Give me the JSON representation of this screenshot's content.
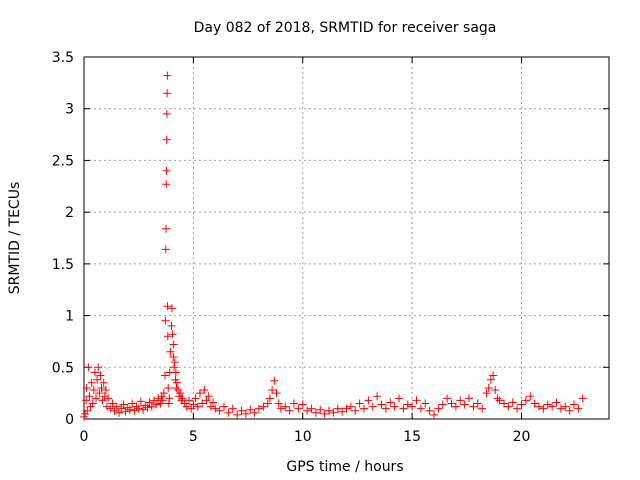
{
  "chart_data": {
    "type": "scatter",
    "title": "Day 082 of 2018, SRMTID for receiver saga",
    "xlabel": "GPS time / hours",
    "ylabel": "SRMTID / TECUs",
    "xlim": [
      0,
      24
    ],
    "ylim": [
      0,
      3.5
    ],
    "xticks": [
      0,
      5,
      10,
      15,
      20
    ],
    "xtick_labels": [
      "0",
      "5",
      "10",
      "15",
      "20"
    ],
    "yticks": [
      0,
      0.5,
      1,
      1.5,
      2,
      2.5,
      3,
      3.5
    ],
    "ytick_labels": [
      "0",
      "0.5",
      "1",
      "1.5",
      "2",
      "2.5",
      "3",
      "3.5"
    ],
    "grid": true,
    "marker": "+",
    "color": "#ff0000",
    "series": [
      {
        "name": "saga",
        "points": [
          [
            0.0,
            0.02
          ],
          [
            0.05,
            0.05
          ],
          [
            0.1,
            0.18
          ],
          [
            0.12,
            0.3
          ],
          [
            0.15,
            0.08
          ],
          [
            0.2,
            0.5
          ],
          [
            0.25,
            0.22
          ],
          [
            0.3,
            0.12
          ],
          [
            0.35,
            0.35
          ],
          [
            0.4,
            0.15
          ],
          [
            0.45,
            0.28
          ],
          [
            0.5,
            0.45
          ],
          [
            0.55,
            0.2
          ],
          [
            0.6,
            0.38
          ],
          [
            0.65,
            0.5
          ],
          [
            0.7,
            0.25
          ],
          [
            0.75,
            0.42
          ],
          [
            0.8,
            0.3
          ],
          [
            0.85,
            0.18
          ],
          [
            0.9,
            0.35
          ],
          [
            0.95,
            0.22
          ],
          [
            1.0,
            0.28
          ],
          [
            1.05,
            0.12
          ],
          [
            1.1,
            0.2
          ],
          [
            1.2,
            0.1
          ],
          [
            1.3,
            0.15
          ],
          [
            1.4,
            0.08
          ],
          [
            1.5,
            0.12
          ],
          [
            1.6,
            0.06
          ],
          [
            1.7,
            0.1
          ],
          [
            1.8,
            0.14
          ],
          [
            1.9,
            0.07
          ],
          [
            2.0,
            0.11
          ],
          [
            2.1,
            0.09
          ],
          [
            2.2,
            0.15
          ],
          [
            2.3,
            0.08
          ],
          [
            2.4,
            0.12
          ],
          [
            2.5,
            0.1
          ],
          [
            2.6,
            0.17
          ],
          [
            2.7,
            0.09
          ],
          [
            2.8,
            0.13
          ],
          [
            2.9,
            0.11
          ],
          [
            3.0,
            0.16
          ],
          [
            3.1,
            0.12
          ],
          [
            3.2,
            0.18
          ],
          [
            3.3,
            0.14
          ],
          [
            3.4,
            0.2
          ],
          [
            3.5,
            0.15
          ],
          [
            3.55,
            0.22
          ],
          [
            3.6,
            0.18
          ],
          [
            3.65,
            0.25
          ],
          [
            3.7,
            0.42
          ],
          [
            3.72,
            0.95
          ],
          [
            3.74,
            1.64
          ],
          [
            3.75,
            1.84
          ],
          [
            3.76,
            2.27
          ],
          [
            3.77,
            2.4
          ],
          [
            3.78,
            2.7
          ],
          [
            3.79,
            2.95
          ],
          [
            3.8,
            3.15
          ],
          [
            3.81,
            3.32
          ],
          [
            3.82,
            1.09
          ],
          [
            3.83,
            0.8
          ],
          [
            3.85,
            0.3
          ],
          [
            3.88,
            0.15
          ],
          [
            3.9,
            0.2
          ],
          [
            3.92,
            0.45
          ],
          [
            3.95,
            0.65
          ],
          [
            4.0,
            0.9
          ],
          [
            4.02,
            1.07
          ],
          [
            4.05,
            0.82
          ],
          [
            4.08,
            0.6
          ],
          [
            4.1,
            0.72
          ],
          [
            4.12,
            0.5
          ],
          [
            4.15,
            0.55
          ],
          [
            4.18,
            0.38
          ],
          [
            4.2,
            0.45
          ],
          [
            4.22,
            0.3
          ],
          [
            4.25,
            0.35
          ],
          [
            4.3,
            0.28
          ],
          [
            4.35,
            0.22
          ],
          [
            4.4,
            0.25
          ],
          [
            4.45,
            0.18
          ],
          [
            4.5,
            0.2
          ],
          [
            4.6,
            0.15
          ],
          [
            4.7,
            0.12
          ],
          [
            4.8,
            0.18
          ],
          [
            4.9,
            0.1
          ],
          [
            5.0,
            0.14
          ],
          [
            5.1,
            0.2
          ],
          [
            5.2,
            0.12
          ],
          [
            5.3,
            0.25
          ],
          [
            5.4,
            0.15
          ],
          [
            5.5,
            0.28
          ],
          [
            5.6,
            0.18
          ],
          [
            5.7,
            0.22
          ],
          [
            5.8,
            0.12
          ],
          [
            5.9,
            0.16
          ],
          [
            6.0,
            0.1
          ],
          [
            6.2,
            0.08
          ],
          [
            6.4,
            0.12
          ],
          [
            6.6,
            0.06
          ],
          [
            6.8,
            0.1
          ],
          [
            7.0,
            0.04
          ],
          [
            7.2,
            0.08
          ],
          [
            7.4,
            0.05
          ],
          [
            7.6,
            0.09
          ],
          [
            7.8,
            0.06
          ],
          [
            8.0,
            0.1
          ],
          [
            8.2,
            0.12
          ],
          [
            8.4,
            0.15
          ],
          [
            8.5,
            0.2
          ],
          [
            8.6,
            0.28
          ],
          [
            8.7,
            0.37
          ],
          [
            8.8,
            0.25
          ],
          [
            8.9,
            0.15
          ],
          [
            9.0,
            0.1
          ],
          [
            9.2,
            0.12
          ],
          [
            9.4,
            0.08
          ],
          [
            9.6,
            0.15
          ],
          [
            9.8,
            0.1
          ],
          [
            10.0,
            0.14
          ],
          [
            10.2,
            0.08
          ],
          [
            10.4,
            0.1
          ],
          [
            10.6,
            0.06
          ],
          [
            10.8,
            0.09
          ],
          [
            11.0,
            0.05
          ],
          [
            11.2,
            0.08
          ],
          [
            11.4,
            0.06
          ],
          [
            11.6,
            0.1
          ],
          [
            11.8,
            0.07
          ],
          [
            12.0,
            0.1
          ],
          [
            12.2,
            0.12
          ],
          [
            12.4,
            0.08
          ],
          [
            12.6,
            0.15
          ],
          [
            12.8,
            0.1
          ],
          [
            13.0,
            0.18
          ],
          [
            13.2,
            0.12
          ],
          [
            13.4,
            0.22
          ],
          [
            13.6,
            0.14
          ],
          [
            13.8,
            0.1
          ],
          [
            14.0,
            0.16
          ],
          [
            14.2,
            0.12
          ],
          [
            14.4,
            0.2
          ],
          [
            14.6,
            0.1
          ],
          [
            14.8,
            0.14
          ],
          [
            15.0,
            0.12
          ],
          [
            15.2,
            0.18
          ],
          [
            15.4,
            0.1
          ],
          [
            15.6,
            0.15
          ],
          [
            15.8,
            0.08
          ],
          [
            16.0,
            0.04
          ],
          [
            16.2,
            0.1
          ],
          [
            16.4,
            0.14
          ],
          [
            16.6,
            0.2
          ],
          [
            16.8,
            0.15
          ],
          [
            17.0,
            0.12
          ],
          [
            17.2,
            0.18
          ],
          [
            17.4,
            0.14
          ],
          [
            17.6,
            0.2
          ],
          [
            17.8,
            0.12
          ],
          [
            18.0,
            0.15
          ],
          [
            18.2,
            0.1
          ],
          [
            18.4,
            0.25
          ],
          [
            18.5,
            0.3
          ],
          [
            18.6,
            0.38
          ],
          [
            18.7,
            0.42
          ],
          [
            18.8,
            0.28
          ],
          [
            18.9,
            0.2
          ],
          [
            19.0,
            0.18
          ],
          [
            19.2,
            0.15
          ],
          [
            19.4,
            0.12
          ],
          [
            19.6,
            0.16
          ],
          [
            19.8,
            0.1
          ],
          [
            20.0,
            0.14
          ],
          [
            20.2,
            0.18
          ],
          [
            20.4,
            0.22
          ],
          [
            20.6,
            0.15
          ],
          [
            20.8,
            0.12
          ],
          [
            21.0,
            0.1
          ],
          [
            21.2,
            0.14
          ],
          [
            21.4,
            0.12
          ],
          [
            21.6,
            0.16
          ],
          [
            21.8,
            0.1
          ],
          [
            22.0,
            0.12
          ],
          [
            22.2,
            0.08
          ],
          [
            22.4,
            0.14
          ],
          [
            22.6,
            0.1
          ],
          [
            22.8,
            0.2
          ]
        ]
      }
    ]
  }
}
